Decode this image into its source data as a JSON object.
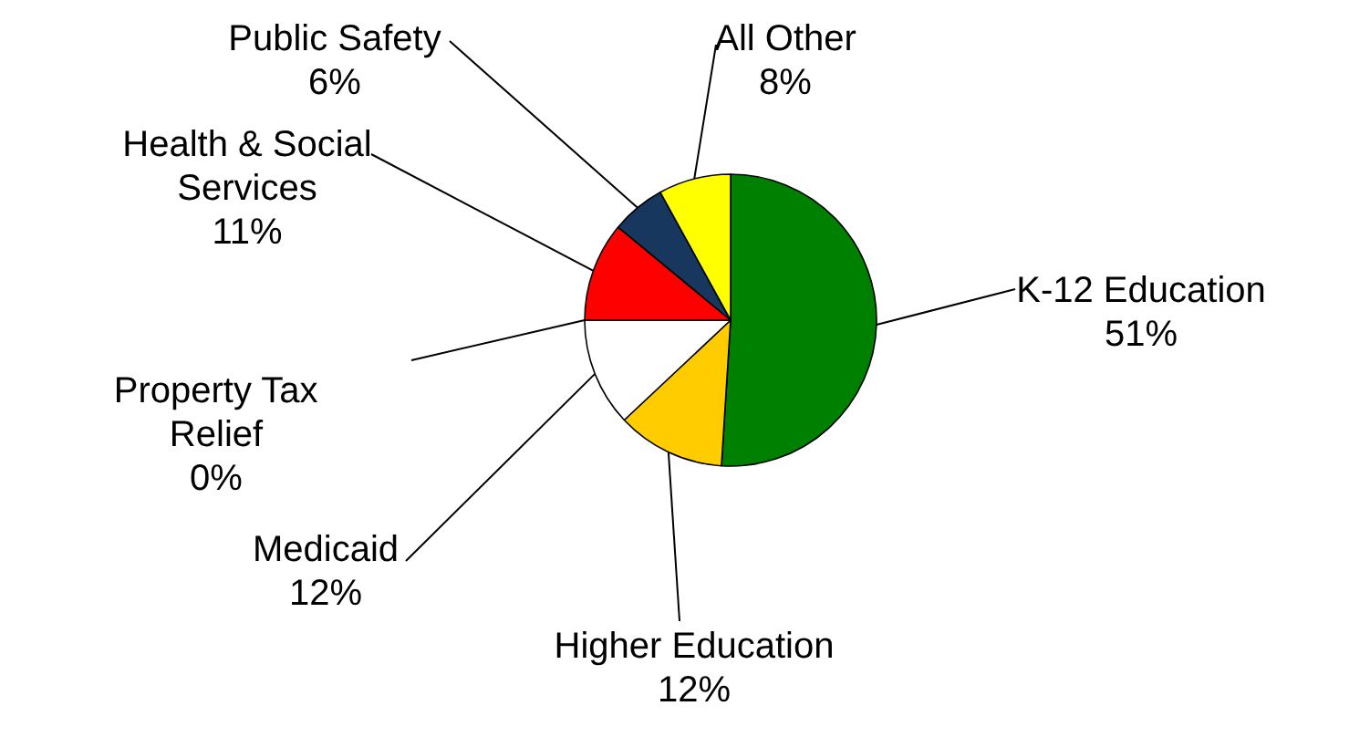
{
  "chart_data": {
    "type": "pie",
    "categories": [
      "K-12 Education",
      "Higher Education",
      "Medicaid",
      "Property Tax Relief",
      "Health & Social Services",
      "Public Safety",
      "All Other"
    ],
    "values": [
      51,
      12,
      12,
      0,
      11,
      6,
      8
    ],
    "value_labels": [
      "51%",
      "12%",
      "12%",
      "0%",
      "11%",
      "6%",
      "8%"
    ],
    "colors": [
      "#008000",
      "#ffcc00",
      "#ffffff",
      "#ff0000",
      "#ff0000",
      "#17375e",
      "#ffff00"
    ]
  }
}
